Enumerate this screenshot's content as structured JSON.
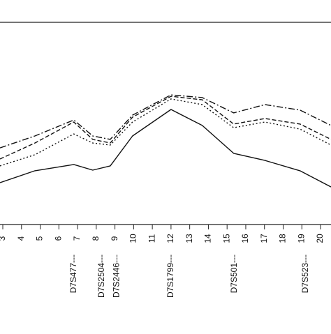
{
  "chart_data": {
    "type": "line",
    "x": [
      2.85,
      4.72,
      6.8,
      7.81,
      8.75,
      9.94,
      12.0,
      13.67,
      15.35,
      17.03,
      18.9,
      20.56
    ],
    "series": [
      {
        "color": "#111111",
        "dash": "none",
        "values": [
          20.7,
          26.6,
          29.7,
          26.9,
          29.0,
          43.8,
          56.9,
          49.0,
          35.2,
          31.7,
          26.6,
          18.6
        ]
      },
      {
        "color": "#111111",
        "dash": "2 3",
        "values": [
          29.0,
          34.5,
          44.8,
          40.3,
          39.3,
          50.7,
          62.1,
          59.3,
          47.9,
          50.7,
          47.2,
          39.3
        ]
      },
      {
        "color": "#111111",
        "dash": "6 3",
        "values": [
          32.4,
          40.3,
          50.7,
          42.1,
          40.3,
          53.1,
          63.4,
          61.7,
          49.7,
          52.4,
          49.7,
          42.1
        ]
      },
      {
        "color": "#111111",
        "dash": "9 3 2 3",
        "values": [
          37.9,
          43.8,
          51.7,
          43.8,
          42.1,
          54.1,
          64.1,
          62.8,
          55.2,
          59.3,
          56.6,
          49.0
        ]
      }
    ],
    "xlim": [
      2.85,
      20.56
    ],
    "ylim": [
      0,
      100
    ],
    "xticks": [
      3,
      4,
      5,
      6,
      7,
      8,
      9,
      10,
      11,
      12,
      13,
      14,
      15,
      16,
      17,
      18,
      19,
      20
    ],
    "markers": {
      "labels": [
        "D7S477---",
        "D7S2504---",
        "D7S2446---",
        "D7S1799---",
        "D7S501---",
        "D7S523---"
      ],
      "positions": [
        6.8,
        8.3,
        9.1,
        12.0,
        15.4,
        19.2
      ]
    }
  }
}
